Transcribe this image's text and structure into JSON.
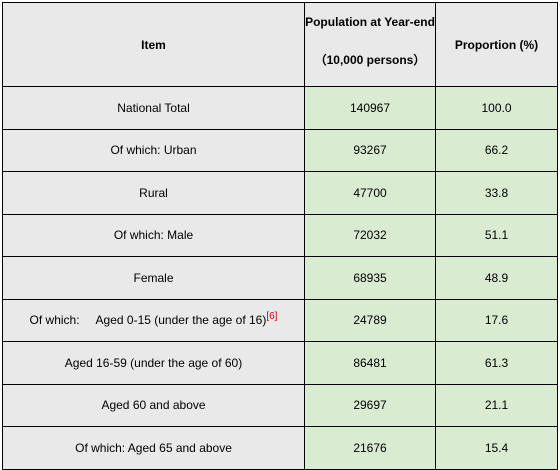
{
  "header": {
    "item": "Item",
    "population_line1": "Population at Year-end",
    "population_line2": "（10,000 persons）",
    "proportion": "Proportion (%)"
  },
  "rows": [
    {
      "item": "National Total",
      "population": "140967",
      "proportion": "100.0"
    },
    {
      "item": "Of which: Urban",
      "population": "93267",
      "proportion": "66.2"
    },
    {
      "item": "Rural",
      "population": "47700",
      "proportion": "33.8"
    },
    {
      "item": "Of which: Male",
      "population": "72032",
      "proportion": "51.1"
    },
    {
      "item": "Female",
      "population": "68935",
      "proportion": "48.9"
    },
    {
      "item_prefix": "Of which:",
      "item": "Aged 0-15 (under the age of 16)",
      "ref": "[6]",
      "population": "24789",
      "proportion": "17.6"
    },
    {
      "item": "Aged 16-59 (under the age of 60)",
      "population": "86481",
      "proportion": "61.3"
    },
    {
      "item": "Aged 60 and above",
      "population": "29697",
      "proportion": "21.1"
    },
    {
      "item": "Of which: Aged 65 and above",
      "population": "21676",
      "proportion": "15.4"
    }
  ],
  "colors": {
    "item_cell_bg": "#e9e9e9",
    "value_cell_bg": "#d9ecd2",
    "reference_mark": "#d00000",
    "border": "#000000"
  }
}
